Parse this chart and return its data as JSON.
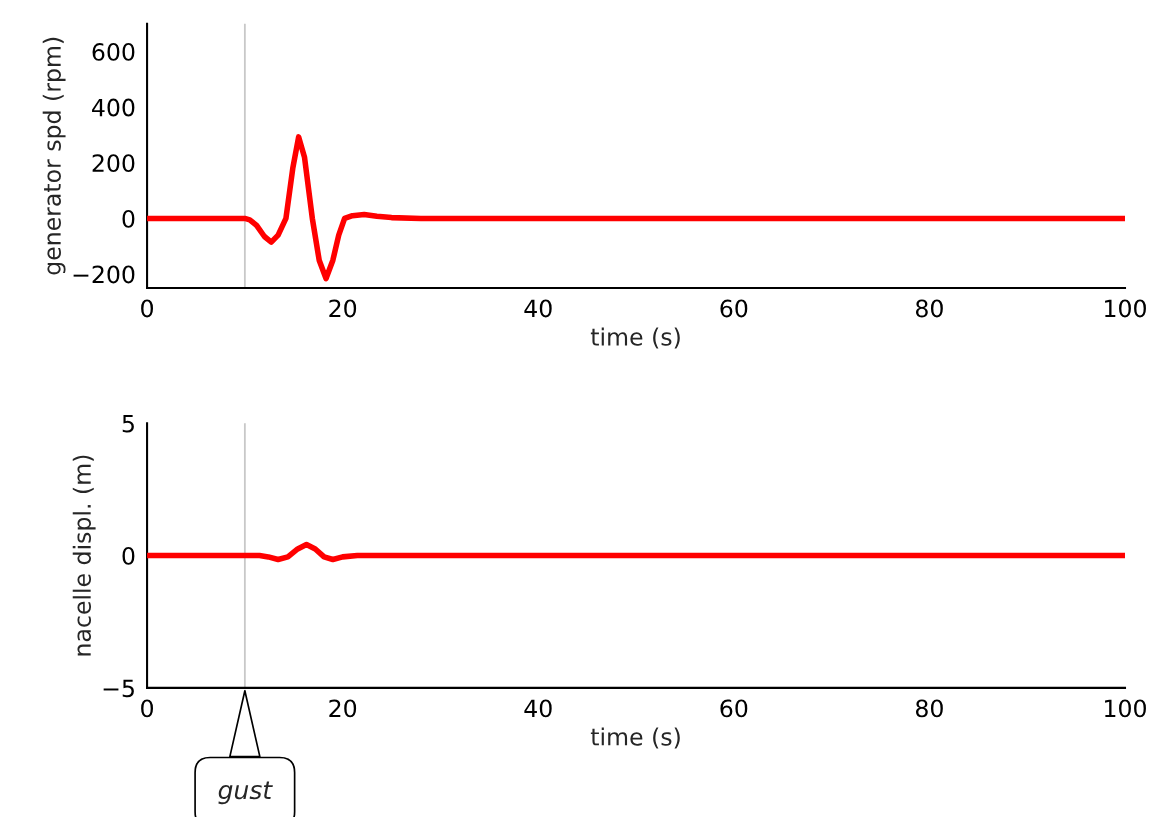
{
  "chart_data": [
    {
      "type": "line",
      "ylabel": "generator spd (rpm)",
      "xlabel": "time (s)",
      "xlim": [
        0,
        100
      ],
      "xticks": [
        0,
        20,
        40,
        60,
        80,
        100
      ],
      "ylim": [
        -250,
        700
      ],
      "yticks": [
        {
          "value": -200,
          "label": "−200"
        },
        0,
        200,
        400,
        600
      ],
      "grid": false,
      "legend": false,
      "marker": "none",
      "line_style": "solid",
      "ref_lines": [
        {
          "axis": "x",
          "value": 10,
          "color": "#c8c8c8"
        }
      ],
      "series": [
        {
          "color": "#ff0000",
          "x": [
            0,
            10,
            10.5,
            11.2,
            12,
            12.7,
            13.4,
            14.2,
            14.9,
            15.5,
            16.1,
            16.9,
            17.6,
            18.3,
            19.0,
            19.6,
            20.2,
            21.0,
            22.2,
            23.5,
            25,
            28,
            100
          ],
          "values": [
            0,
            0,
            -5,
            -25,
            -65,
            -85,
            -60,
            0,
            180,
            293,
            220,
            0,
            -150,
            -216,
            -150,
            -60,
            0,
            10,
            14,
            8,
            3,
            0,
            0
          ]
        }
      ]
    },
    {
      "type": "line",
      "ylabel": "nacelle displ. (m)",
      "xlabel": "time (s)",
      "xlim": [
        0,
        100
      ],
      "xticks": [
        0,
        20,
        40,
        60,
        80,
        100
      ],
      "ylim": [
        -5,
        5
      ],
      "yticks": [
        {
          "value": -5,
          "label": "−5"
        },
        0,
        5
      ],
      "grid": false,
      "legend": false,
      "marker": "none",
      "line_style": "solid",
      "ref_lines": [
        {
          "axis": "x",
          "value": 10,
          "color": "#c8c8c8"
        }
      ],
      "annotations": [
        {
          "text": "gust",
          "x": 10,
          "y": -5
        }
      ],
      "series": [
        {
          "color": "#ff0000",
          "x": [
            0,
            11.5,
            12.4,
            13.4,
            14.4,
            15.4,
            16.3,
            17.2,
            18.1,
            19.0,
            20.0,
            21.5,
            24,
            100
          ],
          "values": [
            0,
            0,
            -0.05,
            -0.15,
            -0.05,
            0.25,
            0.42,
            0.25,
            -0.05,
            -0.15,
            -0.05,
            0,
            0,
            0
          ]
        }
      ]
    }
  ]
}
